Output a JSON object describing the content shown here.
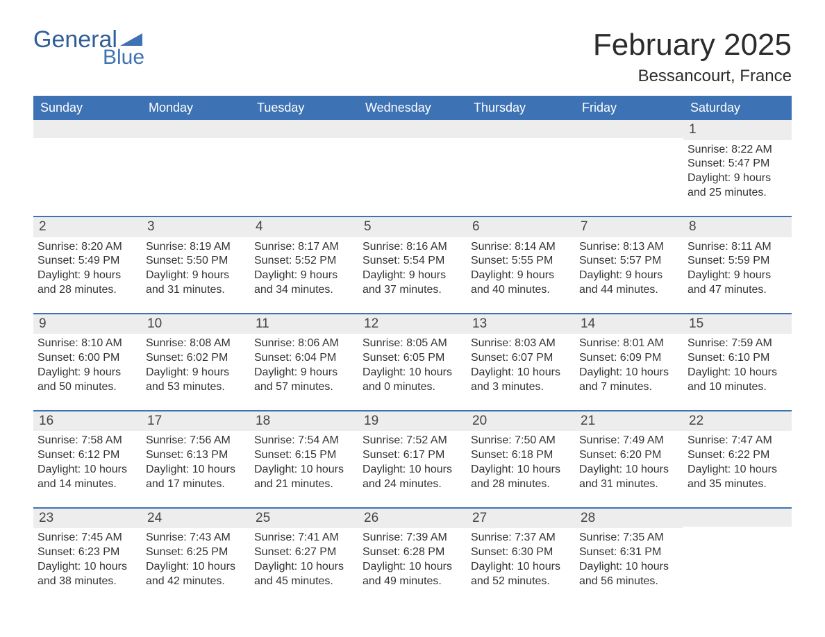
{
  "logo": {
    "text1": "General",
    "text2": "Blue"
  },
  "title": "February 2025",
  "location": "Bessancourt, France",
  "colors": {
    "header_bg": "#3d72b4",
    "header_text": "#ffffff",
    "daynum_bg": "#ededed",
    "border": "#3d72b4",
    "body_text": "#333333",
    "logo_general": "#2f5e99",
    "logo_blue": "#3d72b4",
    "page_bg": "#ffffff"
  },
  "day_labels": [
    "Sunday",
    "Monday",
    "Tuesday",
    "Wednesday",
    "Thursday",
    "Friday",
    "Saturday"
  ],
  "weeks": [
    [
      {
        "day": null
      },
      {
        "day": null
      },
      {
        "day": null
      },
      {
        "day": null
      },
      {
        "day": null
      },
      {
        "day": null
      },
      {
        "day": "1",
        "sunrise": "Sunrise: 8:22 AM",
        "sunset": "Sunset: 5:47 PM",
        "daylight": "Daylight: 9 hours and 25 minutes."
      }
    ],
    [
      {
        "day": "2",
        "sunrise": "Sunrise: 8:20 AM",
        "sunset": "Sunset: 5:49 PM",
        "daylight": "Daylight: 9 hours and 28 minutes."
      },
      {
        "day": "3",
        "sunrise": "Sunrise: 8:19 AM",
        "sunset": "Sunset: 5:50 PM",
        "daylight": "Daylight: 9 hours and 31 minutes."
      },
      {
        "day": "4",
        "sunrise": "Sunrise: 8:17 AM",
        "sunset": "Sunset: 5:52 PM",
        "daylight": "Daylight: 9 hours and 34 minutes."
      },
      {
        "day": "5",
        "sunrise": "Sunrise: 8:16 AM",
        "sunset": "Sunset: 5:54 PM",
        "daylight": "Daylight: 9 hours and 37 minutes."
      },
      {
        "day": "6",
        "sunrise": "Sunrise: 8:14 AM",
        "sunset": "Sunset: 5:55 PM",
        "daylight": "Daylight: 9 hours and 40 minutes."
      },
      {
        "day": "7",
        "sunrise": "Sunrise: 8:13 AM",
        "sunset": "Sunset: 5:57 PM",
        "daylight": "Daylight: 9 hours and 44 minutes."
      },
      {
        "day": "8",
        "sunrise": "Sunrise: 8:11 AM",
        "sunset": "Sunset: 5:59 PM",
        "daylight": "Daylight: 9 hours and 47 minutes."
      }
    ],
    [
      {
        "day": "9",
        "sunrise": "Sunrise: 8:10 AM",
        "sunset": "Sunset: 6:00 PM",
        "daylight": "Daylight: 9 hours and 50 minutes."
      },
      {
        "day": "10",
        "sunrise": "Sunrise: 8:08 AM",
        "sunset": "Sunset: 6:02 PM",
        "daylight": "Daylight: 9 hours and 53 minutes."
      },
      {
        "day": "11",
        "sunrise": "Sunrise: 8:06 AM",
        "sunset": "Sunset: 6:04 PM",
        "daylight": "Daylight: 9 hours and 57 minutes."
      },
      {
        "day": "12",
        "sunrise": "Sunrise: 8:05 AM",
        "sunset": "Sunset: 6:05 PM",
        "daylight": "Daylight: 10 hours and 0 minutes."
      },
      {
        "day": "13",
        "sunrise": "Sunrise: 8:03 AM",
        "sunset": "Sunset: 6:07 PM",
        "daylight": "Daylight: 10 hours and 3 minutes."
      },
      {
        "day": "14",
        "sunrise": "Sunrise: 8:01 AM",
        "sunset": "Sunset: 6:09 PM",
        "daylight": "Daylight: 10 hours and 7 minutes."
      },
      {
        "day": "15",
        "sunrise": "Sunrise: 7:59 AM",
        "sunset": "Sunset: 6:10 PM",
        "daylight": "Daylight: 10 hours and 10 minutes."
      }
    ],
    [
      {
        "day": "16",
        "sunrise": "Sunrise: 7:58 AM",
        "sunset": "Sunset: 6:12 PM",
        "daylight": "Daylight: 10 hours and 14 minutes."
      },
      {
        "day": "17",
        "sunrise": "Sunrise: 7:56 AM",
        "sunset": "Sunset: 6:13 PM",
        "daylight": "Daylight: 10 hours and 17 minutes."
      },
      {
        "day": "18",
        "sunrise": "Sunrise: 7:54 AM",
        "sunset": "Sunset: 6:15 PM",
        "daylight": "Daylight: 10 hours and 21 minutes."
      },
      {
        "day": "19",
        "sunrise": "Sunrise: 7:52 AM",
        "sunset": "Sunset: 6:17 PM",
        "daylight": "Daylight: 10 hours and 24 minutes."
      },
      {
        "day": "20",
        "sunrise": "Sunrise: 7:50 AM",
        "sunset": "Sunset: 6:18 PM",
        "daylight": "Daylight: 10 hours and 28 minutes."
      },
      {
        "day": "21",
        "sunrise": "Sunrise: 7:49 AM",
        "sunset": "Sunset: 6:20 PM",
        "daylight": "Daylight: 10 hours and 31 minutes."
      },
      {
        "day": "22",
        "sunrise": "Sunrise: 7:47 AM",
        "sunset": "Sunset: 6:22 PM",
        "daylight": "Daylight: 10 hours and 35 minutes."
      }
    ],
    [
      {
        "day": "23",
        "sunrise": "Sunrise: 7:45 AM",
        "sunset": "Sunset: 6:23 PM",
        "daylight": "Daylight: 10 hours and 38 minutes."
      },
      {
        "day": "24",
        "sunrise": "Sunrise: 7:43 AM",
        "sunset": "Sunset: 6:25 PM",
        "daylight": "Daylight: 10 hours and 42 minutes."
      },
      {
        "day": "25",
        "sunrise": "Sunrise: 7:41 AM",
        "sunset": "Sunset: 6:27 PM",
        "daylight": "Daylight: 10 hours and 45 minutes."
      },
      {
        "day": "26",
        "sunrise": "Sunrise: 7:39 AM",
        "sunset": "Sunset: 6:28 PM",
        "daylight": "Daylight: 10 hours and 49 minutes."
      },
      {
        "day": "27",
        "sunrise": "Sunrise: 7:37 AM",
        "sunset": "Sunset: 6:30 PM",
        "daylight": "Daylight: 10 hours and 52 minutes."
      },
      {
        "day": "28",
        "sunrise": "Sunrise: 7:35 AM",
        "sunset": "Sunset: 6:31 PM",
        "daylight": "Daylight: 10 hours and 56 minutes."
      },
      {
        "day": null
      }
    ]
  ]
}
